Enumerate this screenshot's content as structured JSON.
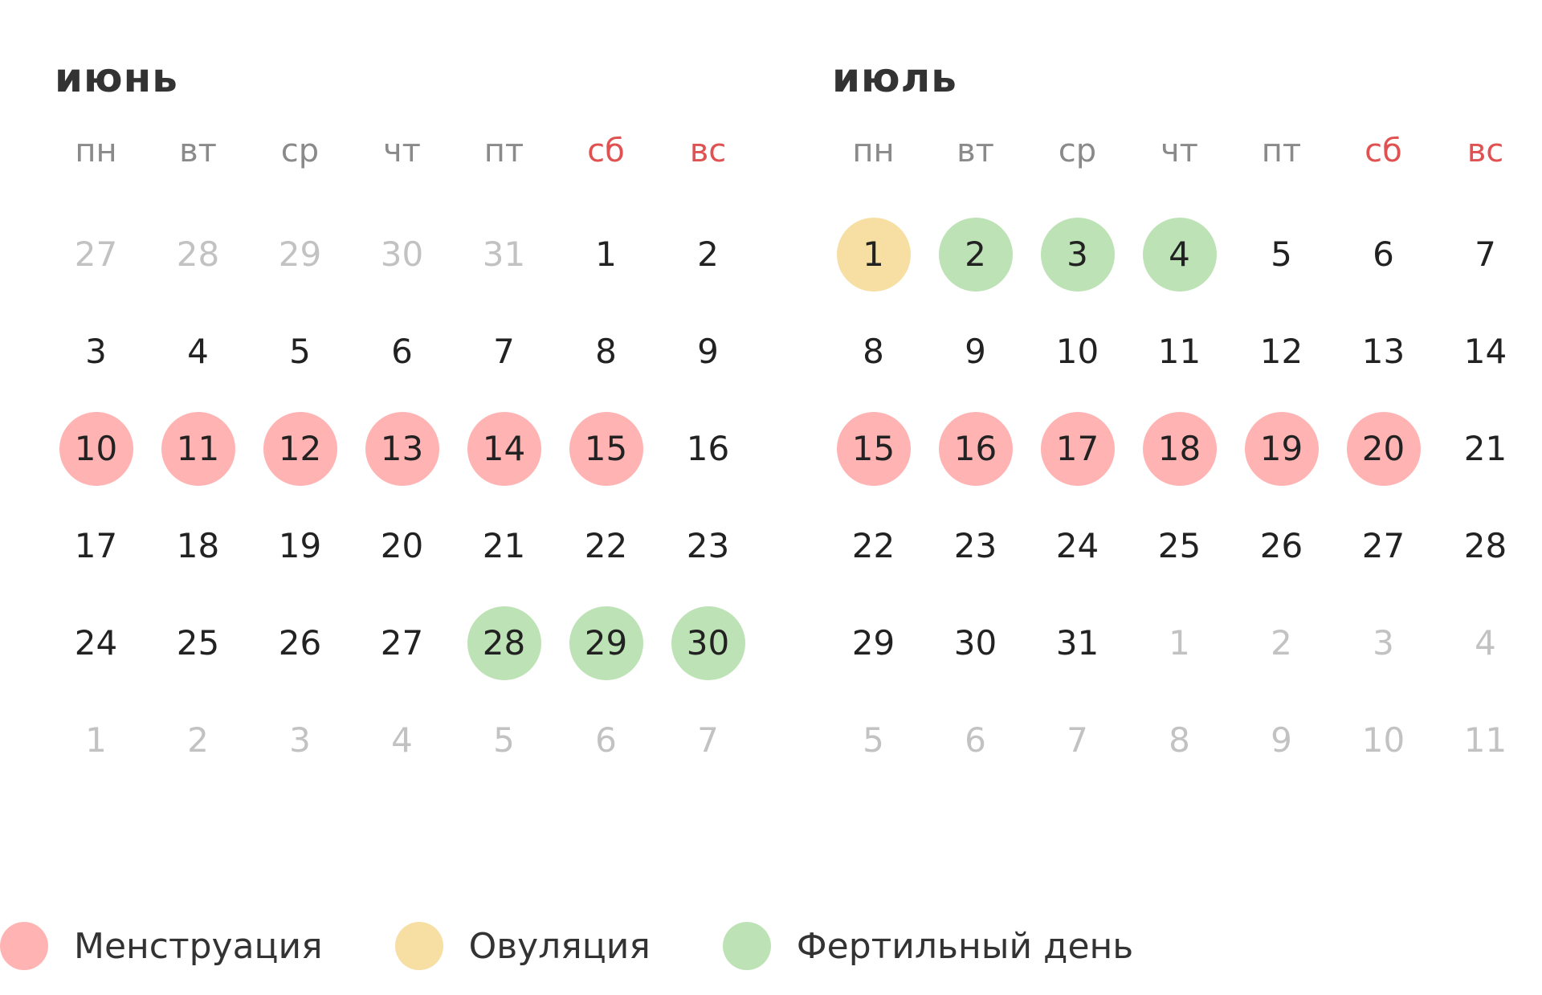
{
  "colors": {
    "menstruation": "#ffb3b3",
    "ovulation": "#f7dea3",
    "fertile": "#bde2b5",
    "weekend_label": "#e05252",
    "other_month_day": "#c2c2c2"
  },
  "months": [
    {
      "title": "июнь",
      "weekdays": [
        {
          "label": "пн",
          "weekend": false
        },
        {
          "label": "вт",
          "weekend": false
        },
        {
          "label": "ср",
          "weekend": false
        },
        {
          "label": "чт",
          "weekend": false
        },
        {
          "label": "пт",
          "weekend": false
        },
        {
          "label": "сб",
          "weekend": true
        },
        {
          "label": "вс",
          "weekend": true
        }
      ],
      "days": [
        {
          "n": "27",
          "other": true,
          "mark": ""
        },
        {
          "n": "28",
          "other": true,
          "mark": ""
        },
        {
          "n": "29",
          "other": true,
          "mark": ""
        },
        {
          "n": "30",
          "other": true,
          "mark": ""
        },
        {
          "n": "31",
          "other": true,
          "mark": ""
        },
        {
          "n": "1",
          "other": false,
          "mark": ""
        },
        {
          "n": "2",
          "other": false,
          "mark": ""
        },
        {
          "n": "3",
          "other": false,
          "mark": ""
        },
        {
          "n": "4",
          "other": false,
          "mark": ""
        },
        {
          "n": "5",
          "other": false,
          "mark": ""
        },
        {
          "n": "6",
          "other": false,
          "mark": ""
        },
        {
          "n": "7",
          "other": false,
          "mark": ""
        },
        {
          "n": "8",
          "other": false,
          "mark": ""
        },
        {
          "n": "9",
          "other": false,
          "mark": ""
        },
        {
          "n": "10",
          "other": false,
          "mark": "mens"
        },
        {
          "n": "11",
          "other": false,
          "mark": "mens"
        },
        {
          "n": "12",
          "other": false,
          "mark": "mens"
        },
        {
          "n": "13",
          "other": false,
          "mark": "mens"
        },
        {
          "n": "14",
          "other": false,
          "mark": "mens"
        },
        {
          "n": "15",
          "other": false,
          "mark": "mens"
        },
        {
          "n": "16",
          "other": false,
          "mark": ""
        },
        {
          "n": "17",
          "other": false,
          "mark": ""
        },
        {
          "n": "18",
          "other": false,
          "mark": ""
        },
        {
          "n": "19",
          "other": false,
          "mark": ""
        },
        {
          "n": "20",
          "other": false,
          "mark": ""
        },
        {
          "n": "21",
          "other": false,
          "mark": ""
        },
        {
          "n": "22",
          "other": false,
          "mark": ""
        },
        {
          "n": "23",
          "other": false,
          "mark": ""
        },
        {
          "n": "24",
          "other": false,
          "mark": ""
        },
        {
          "n": "25",
          "other": false,
          "mark": ""
        },
        {
          "n": "26",
          "other": false,
          "mark": ""
        },
        {
          "n": "27",
          "other": false,
          "mark": ""
        },
        {
          "n": "28",
          "other": false,
          "mark": "fert"
        },
        {
          "n": "29",
          "other": false,
          "mark": "fert"
        },
        {
          "n": "30",
          "other": false,
          "mark": "fert"
        },
        {
          "n": "1",
          "other": true,
          "mark": ""
        },
        {
          "n": "2",
          "other": true,
          "mark": ""
        },
        {
          "n": "3",
          "other": true,
          "mark": ""
        },
        {
          "n": "4",
          "other": true,
          "mark": ""
        },
        {
          "n": "5",
          "other": true,
          "mark": ""
        },
        {
          "n": "6",
          "other": true,
          "mark": ""
        },
        {
          "n": "7",
          "other": true,
          "mark": ""
        }
      ]
    },
    {
      "title": "июль",
      "weekdays": [
        {
          "label": "пн",
          "weekend": false
        },
        {
          "label": "вт",
          "weekend": false
        },
        {
          "label": "ср",
          "weekend": false
        },
        {
          "label": "чт",
          "weekend": false
        },
        {
          "label": "пт",
          "weekend": false
        },
        {
          "label": "сб",
          "weekend": true
        },
        {
          "label": "вс",
          "weekend": true
        }
      ],
      "days": [
        {
          "n": "1",
          "other": false,
          "mark": "ovul"
        },
        {
          "n": "2",
          "other": false,
          "mark": "fert"
        },
        {
          "n": "3",
          "other": false,
          "mark": "fert"
        },
        {
          "n": "4",
          "other": false,
          "mark": "fert"
        },
        {
          "n": "5",
          "other": false,
          "mark": ""
        },
        {
          "n": "6",
          "other": false,
          "mark": ""
        },
        {
          "n": "7",
          "other": false,
          "mark": ""
        },
        {
          "n": "8",
          "other": false,
          "mark": ""
        },
        {
          "n": "9",
          "other": false,
          "mark": ""
        },
        {
          "n": "10",
          "other": false,
          "mark": ""
        },
        {
          "n": "11",
          "other": false,
          "mark": ""
        },
        {
          "n": "12",
          "other": false,
          "mark": ""
        },
        {
          "n": "13",
          "other": false,
          "mark": ""
        },
        {
          "n": "14",
          "other": false,
          "mark": ""
        },
        {
          "n": "15",
          "other": false,
          "mark": "mens"
        },
        {
          "n": "16",
          "other": false,
          "mark": "mens"
        },
        {
          "n": "17",
          "other": false,
          "mark": "mens"
        },
        {
          "n": "18",
          "other": false,
          "mark": "mens"
        },
        {
          "n": "19",
          "other": false,
          "mark": "mens"
        },
        {
          "n": "20",
          "other": false,
          "mark": "mens"
        },
        {
          "n": "21",
          "other": false,
          "mark": ""
        },
        {
          "n": "22",
          "other": false,
          "mark": ""
        },
        {
          "n": "23",
          "other": false,
          "mark": ""
        },
        {
          "n": "24",
          "other": false,
          "mark": ""
        },
        {
          "n": "25",
          "other": false,
          "mark": ""
        },
        {
          "n": "26",
          "other": false,
          "mark": ""
        },
        {
          "n": "27",
          "other": false,
          "mark": ""
        },
        {
          "n": "28",
          "other": false,
          "mark": ""
        },
        {
          "n": "29",
          "other": false,
          "mark": ""
        },
        {
          "n": "30",
          "other": false,
          "mark": ""
        },
        {
          "n": "31",
          "other": false,
          "mark": ""
        },
        {
          "n": "1",
          "other": true,
          "mark": ""
        },
        {
          "n": "2",
          "other": true,
          "mark": ""
        },
        {
          "n": "3",
          "other": true,
          "mark": ""
        },
        {
          "n": "4",
          "other": true,
          "mark": ""
        },
        {
          "n": "5",
          "other": true,
          "mark": ""
        },
        {
          "n": "6",
          "other": true,
          "mark": ""
        },
        {
          "n": "7",
          "other": true,
          "mark": ""
        },
        {
          "n": "8",
          "other": true,
          "mark": ""
        },
        {
          "n": "9",
          "other": true,
          "mark": ""
        },
        {
          "n": "10",
          "other": true,
          "mark": ""
        },
        {
          "n": "11",
          "other": true,
          "mark": ""
        }
      ]
    }
  ],
  "legend": [
    {
      "key": "menstruation",
      "label": "Менструация"
    },
    {
      "key": "ovulation",
      "label": "Овуляция"
    },
    {
      "key": "fertile",
      "label": "Фертильный день"
    }
  ]
}
